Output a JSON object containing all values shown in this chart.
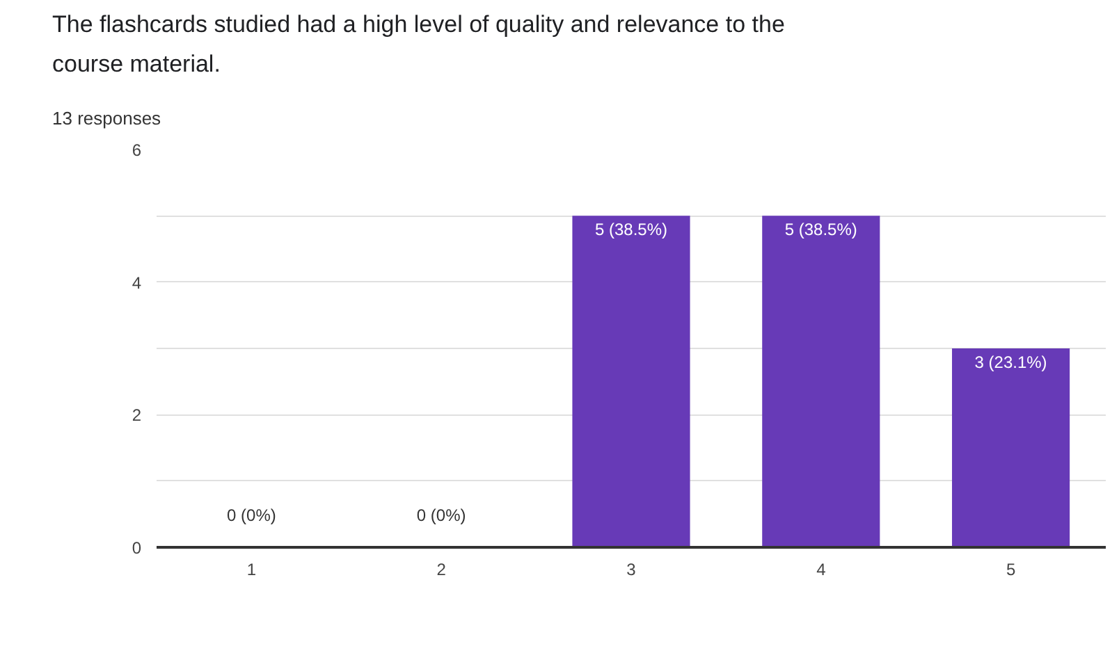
{
  "chart_data": {
    "type": "bar",
    "title": "The flashcards studied had a high level of quality and relevance to the course material.",
    "subtitle": "13 responses",
    "categories": [
      "1",
      "2",
      "3",
      "4",
      "5"
    ],
    "values": [
      0,
      0,
      5,
      5,
      3
    ],
    "color": "#673ab7",
    "value_labels": [
      "0 (0%)",
      "0 (0%)",
      "5 (38.5%)",
      "5 (38.5%)",
      "3 (23.1%)"
    ],
    "ylim": [
      0,
      6
    ],
    "yticks": [
      0,
      {
        "value": 1,
        "label": null
      },
      2,
      {
        "value": 3,
        "label": null
      },
      4,
      {
        "value": 5,
        "label": null
      },
      6
    ],
    "grid": "y"
  }
}
